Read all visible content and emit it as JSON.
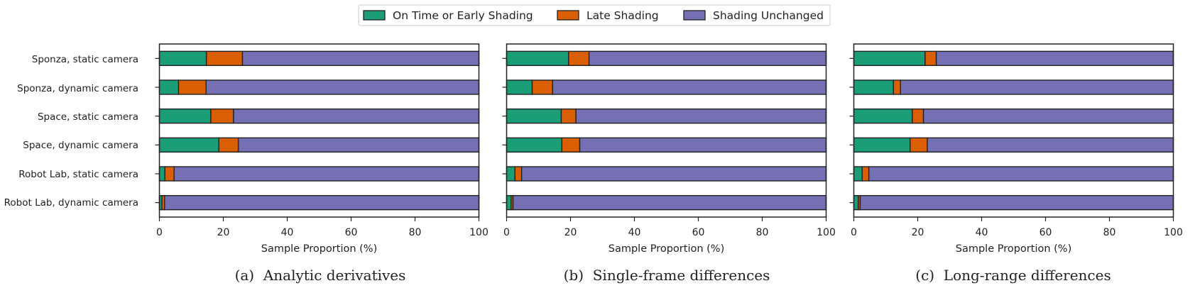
{
  "legend": {
    "placement": "top-center",
    "items": [
      {
        "label": "On Time or Early Shading",
        "color": "#1b9e77"
      },
      {
        "label": "Late Shading",
        "color": "#d95f02"
      },
      {
        "label": "Shading Unchanged",
        "color": "#7570b3"
      }
    ]
  },
  "chart_data": [
    {
      "type": "bar",
      "orientation": "horizontal",
      "stacked": true,
      "caption": "(a)  Analytic derivatives",
      "xlabel": "Sample Proportion (%)",
      "xlim": [
        0,
        100
      ],
      "xticks": [
        "0",
        "20",
        "40",
        "60",
        "80",
        "100"
      ],
      "categories": [
        "Sponza, static camera",
        "Sponza, dynamic camera",
        "Space, static camera",
        "Space, dynamic camera",
        "Robot Lab, static camera",
        "Robot Lab, dynamic camera"
      ],
      "series": [
        {
          "name": "On Time or Early Shading",
          "values": [
            14.7,
            6.0,
            16.1,
            18.6,
            1.7,
            0.8
          ]
        },
        {
          "name": "Late Shading",
          "values": [
            11.3,
            8.6,
            7.1,
            6.1,
            2.9,
            0.8
          ]
        },
        {
          "name": "Shading Unchanged",
          "values": [
            74.0,
            85.4,
            76.8,
            75.3,
            95.4,
            98.4
          ]
        }
      ],
      "grid": false
    },
    {
      "type": "bar",
      "orientation": "horizontal",
      "stacked": true,
      "caption": "(b)  Single-frame differences",
      "xlabel": "Sample Proportion (%)",
      "xlim": [
        0,
        100
      ],
      "xticks": [
        "0",
        "20",
        "40",
        "60",
        "80",
        "100"
      ],
      "categories": [
        "Sponza, static camera",
        "Sponza, dynamic camera",
        "Space, static camera",
        "Space, dynamic camera",
        "Robot Lab, static camera",
        "Robot Lab, dynamic camera"
      ],
      "series": [
        {
          "name": "On Time or Early Shading",
          "values": [
            19.4,
            8.0,
            17.1,
            17.3,
            2.6,
            1.4
          ]
        },
        {
          "name": "Late Shading",
          "values": [
            6.4,
            6.4,
            4.6,
            5.6,
            2.1,
            0.6
          ]
        },
        {
          "name": "Shading Unchanged",
          "values": [
            74.2,
            85.6,
            78.3,
            77.1,
            95.3,
            98.0
          ]
        }
      ],
      "grid": false
    },
    {
      "type": "bar",
      "orientation": "horizontal",
      "stacked": true,
      "caption": "(c)  Long-range differences",
      "xlabel": "Sample Proportion (%)",
      "xlim": [
        0,
        100
      ],
      "xticks": [
        "0",
        "20",
        "40",
        "60",
        "80",
        "100"
      ],
      "categories": [
        "Sponza, static camera",
        "Sponza, dynamic camera",
        "Space, static camera",
        "Space, dynamic camera",
        "Robot Lab, static camera",
        "Robot Lab, dynamic camera"
      ],
      "series": [
        {
          "name": "On Time or Early Shading",
          "values": [
            22.3,
            12.4,
            18.3,
            17.6,
            2.6,
            1.4
          ]
        },
        {
          "name": "Late Shading",
          "values": [
            3.5,
            2.2,
            3.5,
            5.4,
            2.1,
            0.6
          ]
        },
        {
          "name": "Shading Unchanged",
          "values": [
            74.2,
            85.4,
            78.2,
            77.0,
            95.3,
            98.0
          ]
        }
      ],
      "grid": false
    }
  ]
}
